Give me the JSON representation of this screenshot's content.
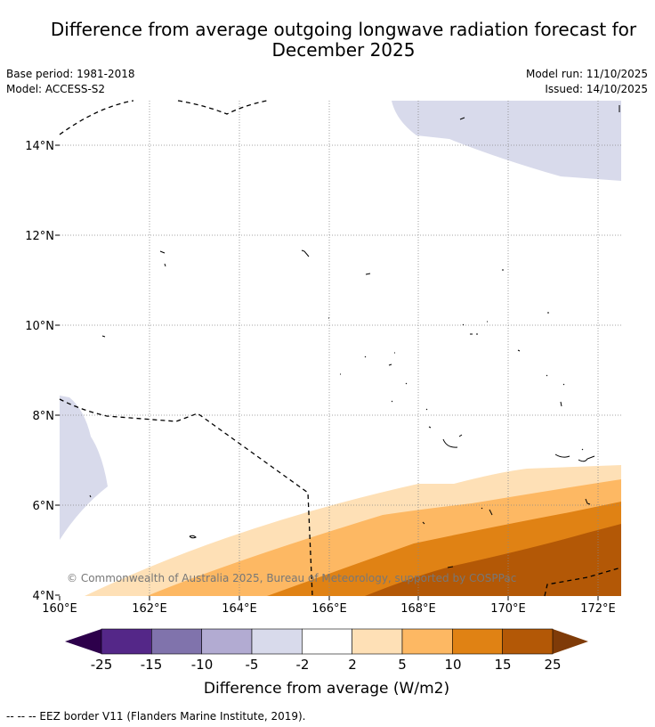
{
  "title": {
    "line1": "Difference from average outgoing longwave radiation forecast for",
    "line2": "December 2025"
  },
  "meta": {
    "base_period": "Base period: 1981-2018",
    "model": "Model: ACCESS-S2",
    "model_run": "Model run: 11/10/2025",
    "issued": "Issued: 14/10/2025"
  },
  "map": {
    "lat_labels": [
      "14°N",
      "12°N",
      "10°N",
      "8°N",
      "6°N",
      "4°N"
    ],
    "lon_labels": [
      "160°E",
      "162°E",
      "164°E",
      "166°E",
      "168°E",
      "170°E",
      "172°E"
    ],
    "copyright": "© Commonwealth of Australia 2025, Bureau of Meteorology, supported by COSPPac"
  },
  "colorbar": {
    "ticks": [
      "-25",
      "-15",
      "-10",
      "-5",
      "-2",
      "2",
      "5",
      "10",
      "15",
      "25"
    ],
    "label": "Difference from average (W/m2)",
    "colors": {
      "below_min": "#2d004b",
      "bins": [
        "#542788",
        "#8073ac",
        "#b2abd2",
        "#d8daeb",
        "#ffffff",
        "#fee0b6",
        "#fdb863",
        "#e08214",
        "#b35806"
      ],
      "above_max": "#7f3b08"
    }
  },
  "legend": {
    "eez": "-- -- -- EEZ border V11 (Flanders Marine Institute, 2019)."
  }
}
